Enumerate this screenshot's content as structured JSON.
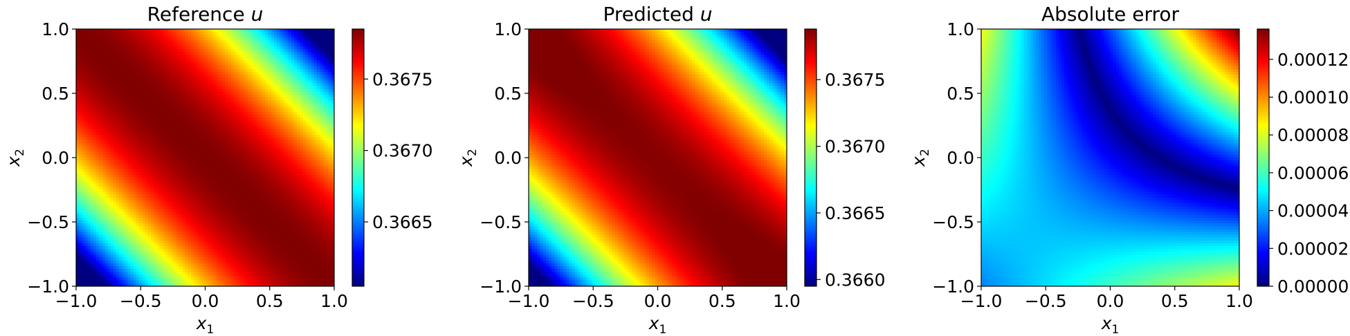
{
  "chart_data": [
    {
      "type": "heatmap",
      "title": "Reference u",
      "title_parts": [
        "Reference ",
        "u"
      ],
      "xlabel": "x1",
      "ylabel": "x2",
      "xlim": [
        -1.0,
        1.0
      ],
      "ylim": [
        -1.0,
        1.0
      ],
      "xticks": [
        "−1.0",
        "−0.5",
        "0.0",
        "0.5",
        "1.0"
      ],
      "xtick_values": [
        -1.0,
        -0.5,
        0.0,
        0.5,
        1.0
      ],
      "yticks": [
        "−1.0",
        "−0.5",
        "0.0",
        "0.5",
        "1.0"
      ],
      "ytick_values": [
        -1.0,
        -0.5,
        0.0,
        0.5,
        1.0
      ],
      "colormap": "jet",
      "field": "reference",
      "colorbar": {
        "vmin": 0.36605,
        "vmax": 0.36785,
        "ticks": [
          "0.3665",
          "0.3670",
          "0.3675"
        ],
        "tick_values": [
          0.3665,
          0.367,
          0.3675
        ]
      }
    },
    {
      "type": "heatmap",
      "title": "Predicted u",
      "title_parts": [
        "Predicted ",
        "u"
      ],
      "xlabel": "x1",
      "ylabel": "x2",
      "xlim": [
        -1.0,
        1.0
      ],
      "ylim": [
        -1.0,
        1.0
      ],
      "xticks": [
        "−1.0",
        "−0.5",
        "0.0",
        "0.5",
        "1.0"
      ],
      "xtick_values": [
        -1.0,
        -0.5,
        0.0,
        0.5,
        1.0
      ],
      "yticks": [
        "−1.0",
        "−0.5",
        "0.0",
        "0.5",
        "1.0"
      ],
      "ytick_values": [
        -1.0,
        -0.5,
        0.0,
        0.5,
        1.0
      ],
      "colormap": "jet",
      "field": "predicted",
      "colorbar": {
        "vmin": 0.36595,
        "vmax": 0.36788,
        "ticks": [
          "0.3660",
          "0.3665",
          "0.3670",
          "0.3675"
        ],
        "tick_values": [
          0.366,
          0.3665,
          0.367,
          0.3675
        ]
      }
    },
    {
      "type": "heatmap",
      "title": "Absolute error",
      "title_parts": [
        "Absolute error",
        ""
      ],
      "xlabel": "x1",
      "ylabel": "x2",
      "xlim": [
        -1.0,
        1.0
      ],
      "ylim": [
        -1.0,
        1.0
      ],
      "xticks": [
        "−1.0",
        "−0.5",
        "0.0",
        "0.5",
        "1.0"
      ],
      "xtick_values": [
        -1.0,
        -0.5,
        0.0,
        0.5,
        1.0
      ],
      "yticks": [
        "−1.0",
        "−0.5",
        "0.0",
        "0.5",
        "1.0"
      ],
      "ytick_values": [
        -1.0,
        -0.5,
        0.0,
        0.5,
        1.0
      ],
      "colormap": "jet",
      "field": "error",
      "colorbar": {
        "vmin": 0.0,
        "vmax": 0.000136,
        "ticks": [
          "0.00000",
          "0.00002",
          "0.00004",
          "0.00006",
          "0.00008",
          "0.00010",
          "0.00012"
        ],
        "tick_values": [
          0.0,
          2e-05,
          4e-05,
          6e-05,
          8e-05,
          0.0001,
          0.00012
        ]
      }
    }
  ]
}
